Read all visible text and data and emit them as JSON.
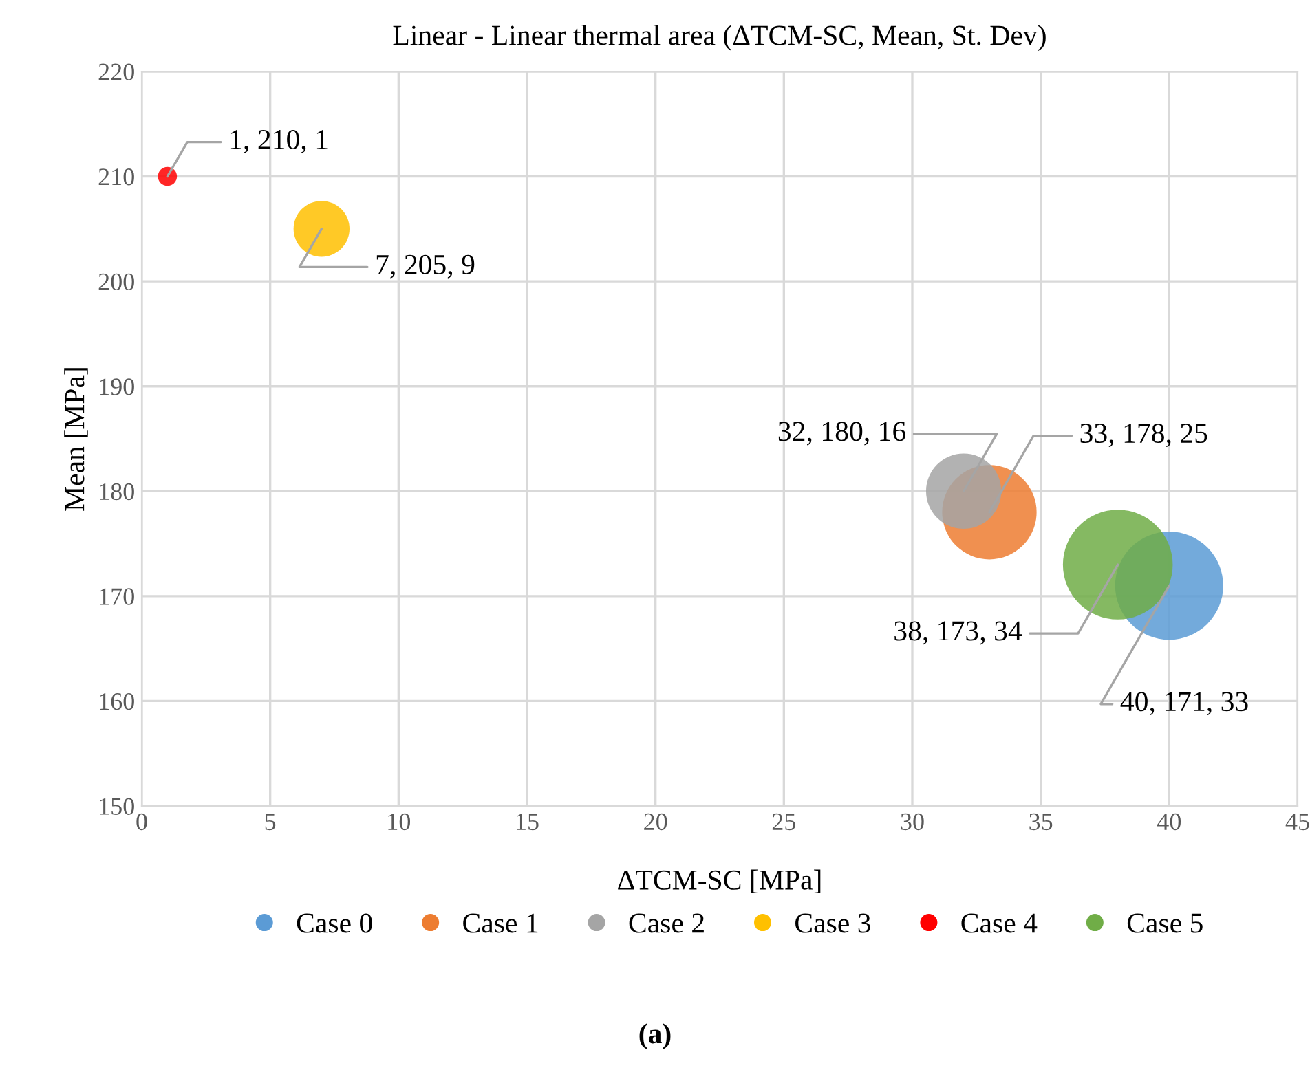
{
  "chart_data": {
    "type": "bubble",
    "title": "Linear - Linear thermal area (ΔTCM-SC, Mean, St. Dev)",
    "xlabel": "ΔTCM-SC [MPa]",
    "ylabel": "Mean [MPa]",
    "series": [
      {
        "name": "Case 0",
        "color": "#5b9bd5",
        "x": [
          40
        ],
        "values": [
          171
        ],
        "sizes": [
          0.97
        ],
        "value_labels": [
          "40, 171, 33"
        ]
      },
      {
        "name": "Case 1",
        "color": "#ed7d31",
        "x": [
          33
        ],
        "values": [
          178
        ],
        "sizes": [
          0.74
        ],
        "value_labels": [
          "33, 178, 25"
        ]
      },
      {
        "name": "Case 2",
        "color": "#a5a5a5",
        "x": [
          32
        ],
        "values": [
          180
        ],
        "sizes": [
          0.47
        ],
        "value_labels": [
          "32, 180, 16"
        ]
      },
      {
        "name": "Case 3",
        "color": "#ffc000",
        "x": [
          7
        ],
        "values": [
          205
        ],
        "sizes": [
          0.26
        ],
        "value_labels": [
          "7, 205, 9"
        ]
      },
      {
        "name": "Case 4",
        "color": "#ff0000",
        "x": [
          1
        ],
        "values": [
          210
        ],
        "sizes": [
          0.03
        ],
        "value_labels": [
          "1, 210, 1"
        ]
      },
      {
        "name": "Case 5",
        "color": "#70ad47",
        "x": [
          38
        ],
        "values": [
          173
        ],
        "sizes": [
          1
        ],
        "value_labels": [
          "38, 173, 34"
        ]
      }
    ],
    "xlim": [
      0,
      45
    ],
    "xticks": [
      0,
      5,
      10,
      15,
      20,
      25,
      30,
      35,
      40,
      45
    ],
    "ylim": [
      150,
      220
    ],
    "yticks": [
      150,
      160,
      170,
      180,
      190,
      200,
      210,
      220
    ],
    "grid": true,
    "legend": "bottom",
    "annotations": [
      "(a)"
    ]
  }
}
